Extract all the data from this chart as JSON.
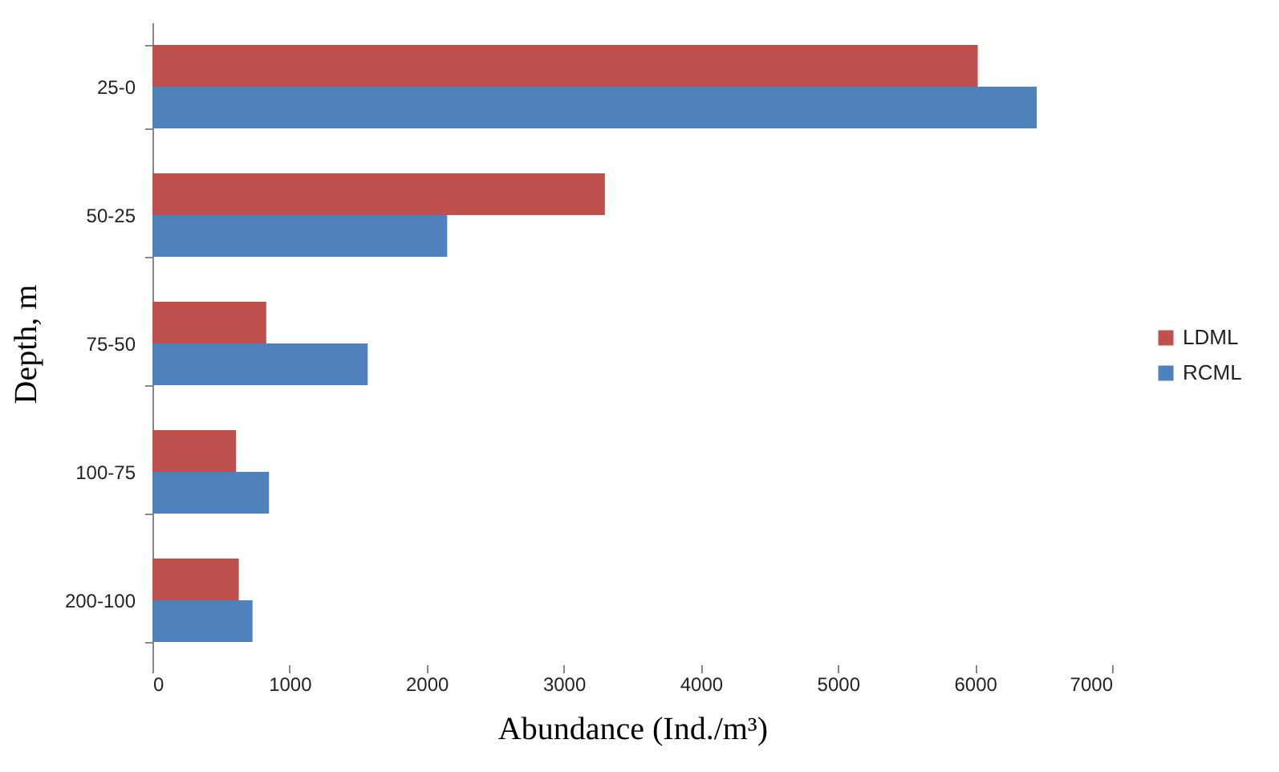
{
  "chart_data": {
    "type": "bar",
    "orientation": "horizontal",
    "categories": [
      "25-0",
      "50-25",
      "75-50",
      "100-75",
      "200-100"
    ],
    "series": [
      {
        "name": "LDML",
        "color": "#c0504d",
        "values": [
          6020,
          3300,
          830,
          610,
          630
        ]
      },
      {
        "name": "RCML",
        "color": "#4f81bd",
        "values": [
          6450,
          2150,
          1570,
          850,
          730
        ]
      }
    ],
    "xlabel": "Abundance (Ind./m³)",
    "ylabel": "Depth, m",
    "xlim": [
      0,
      7000
    ],
    "xticks": [
      0,
      1000,
      2000,
      3000,
      4000,
      5000,
      6000,
      7000
    ],
    "grid": false,
    "legend": "right"
  }
}
